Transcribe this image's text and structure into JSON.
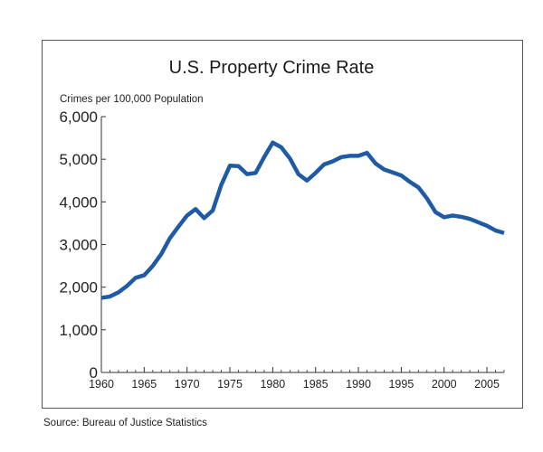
{
  "source_note": "Source: Bureau of Justice Statistics",
  "colors": {
    "line": "#1f5aa6",
    "axis": "#333333",
    "frame": "#555555",
    "text": "#222222"
  },
  "chart_data": {
    "type": "line",
    "title": "U.S. Property Crime Rate",
    "ylabel": "Crimes per 100,000 Population",
    "xlabel": "",
    "xlim": [
      1960,
      2007
    ],
    "ylim": [
      0,
      6000
    ],
    "grid": false,
    "legend": "none",
    "x_ticks": [
      1960,
      1965,
      1970,
      1975,
      1980,
      1985,
      1990,
      1995,
      2000,
      2005
    ],
    "x_tick_labels": [
      "1960",
      "1965",
      "1970",
      "1975",
      "1980",
      "1985",
      "1990",
      "1995",
      "2000",
      "2005"
    ],
    "y_ticks": [
      0,
      1000,
      2000,
      3000,
      4000,
      5000,
      6000
    ],
    "y_tick_labels": [
      "0",
      "1,000",
      "2,000",
      "3,000",
      "4,000",
      "5,000",
      "6,000"
    ],
    "series": [
      {
        "x": [
          1960,
          1961,
          1962,
          1963,
          1964,
          1965,
          1966,
          1967,
          1968,
          1969,
          1970,
          1971,
          1972,
          1973,
          1974,
          1975,
          1976,
          1977,
          1978,
          1979,
          1980,
          1981,
          1982,
          1983,
          1984,
          1985,
          1986,
          1987,
          1988,
          1989,
          1990,
          1991,
          1992,
          1993,
          1994,
          1995,
          1996,
          1997,
          1998,
          1999,
          2000,
          2001,
          2002,
          2003,
          2004,
          2005,
          2006,
          2007
        ],
        "values": [
          1750,
          1780,
          1880,
          2030,
          2220,
          2280,
          2500,
          2780,
          3150,
          3420,
          3680,
          3830,
          3620,
          3800,
          4400,
          4850,
          4840,
          4650,
          4680,
          5050,
          5390,
          5280,
          5020,
          4650,
          4500,
          4680,
          4880,
          4950,
          5050,
          5080,
          5080,
          5150,
          4900,
          4760,
          4690,
          4620,
          4470,
          4340,
          4080,
          3760,
          3640,
          3680,
          3650,
          3600,
          3520,
          3440,
          3330,
          3270
        ]
      }
    ]
  }
}
